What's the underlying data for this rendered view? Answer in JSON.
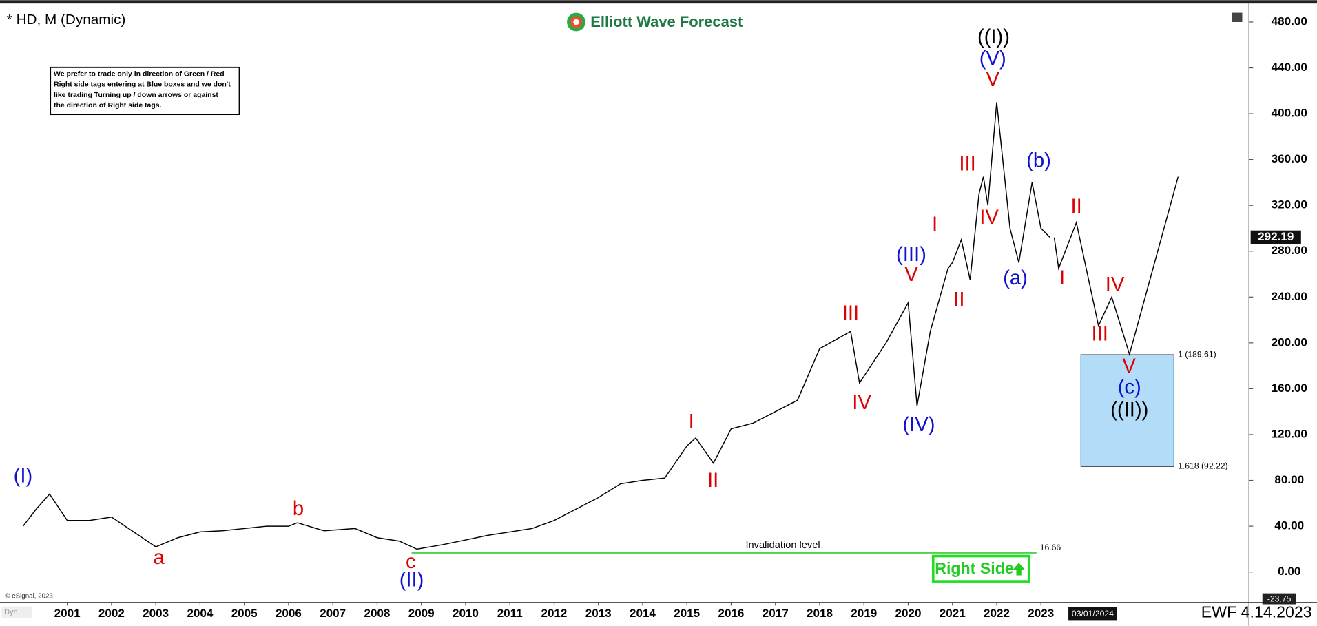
{
  "chart_data": {
    "type": "line",
    "title": "* HD, M (Dynamic)",
    "brand": "Elliott Wave Forecast",
    "disclaimer": [
      "We prefer to trade only in direction of Green / Red",
      "Right side tags entering at Blue boxes and we don't",
      "like trading Turning up / down arrows or against",
      "the direction of Right side tags."
    ],
    "copyright": "© eSignal, 2023",
    "corner_label": "Dyn",
    "footer": "EWF 4.14.2023",
    "date_box": "03/01/2024",
    "right_side_tag": "Right Side",
    "last_price": 292.19,
    "axis_min_marker": -23.75,
    "xlim": [
      1999.48,
      2027.7
    ],
    "xticks": [
      2001,
      2002,
      2003,
      2004,
      2005,
      2006,
      2007,
      2008,
      2009,
      2010,
      2011,
      2012,
      2013,
      2014,
      2015,
      2016,
      2017,
      2018,
      2019,
      2020,
      2021,
      2022,
      2023
    ],
    "ylim": [
      -26.4,
      491.7
    ],
    "yticks": [
      {
        "value": 0,
        "label": "0.00"
      },
      {
        "value": 40,
        "label": "40.00"
      },
      {
        "value": 80,
        "label": "80.00"
      },
      {
        "value": 120,
        "label": "120.00"
      },
      {
        "value": 160,
        "label": "160.00"
      },
      {
        "value": 200,
        "label": "200.00"
      },
      {
        "value": 240,
        "label": "240.00"
      },
      {
        "value": 280,
        "label": "280.00"
      },
      {
        "value": 320,
        "label": "320.00"
      },
      {
        "value": 360,
        "label": "360.00"
      },
      {
        "value": 400,
        "label": "400.00"
      },
      {
        "value": 440,
        "label": "440.00"
      },
      {
        "value": 480,
        "label": "480.00"
      }
    ],
    "series": [
      {
        "name": "HD",
        "color": "#000000",
        "x": [
          2000.0,
          2000.3,
          2000.6,
          2001.0,
          2001.5,
          2002.0,
          2002.5,
          2003.0,
          2003.5,
          2004.0,
          2004.5,
          2005.0,
          2005.5,
          2006.0,
          2006.2,
          2006.8,
          2007.5,
          2008.0,
          2008.5,
          2008.9,
          2009.5,
          2010.0,
          2010.5,
          2011.0,
          2011.5,
          2012.0,
          2012.5,
          2013.0,
          2013.5,
          2014.0,
          2014.5,
          2015.0,
          2015.2,
          2015.6,
          2016.0,
          2016.5,
          2017.0,
          2017.5,
          2018.0,
          2018.7,
          2018.9,
          2019.5,
          2020.0,
          2020.2,
          2020.5,
          2020.9,
          2021.0,
          2021.2,
          2021.4,
          2021.6,
          2021.7,
          2021.8,
          2022.0,
          2022.3,
          2022.5,
          2022.8,
          2023.0,
          2023.2
        ],
        "values": [
          40,
          55,
          68,
          45,
          45,
          48,
          35,
          22,
          30,
          35,
          36,
          38,
          40,
          40,
          43,
          36,
          38,
          30,
          27,
          20,
          24,
          28,
          32,
          35,
          38,
          45,
          55,
          65,
          77,
          80,
          82,
          110,
          117,
          95,
          125,
          130,
          140,
          150,
          195,
          210,
          165,
          200,
          235,
          145,
          210,
          265,
          270,
          290,
          255,
          330,
          345,
          320,
          410,
          300,
          270,
          340,
          300,
          292.19
        ]
      },
      {
        "name": "Projection",
        "color": "#000000",
        "x": [
          2023.3,
          2023.4,
          2023.8,
          2024.3,
          2024.6,
          2025.0,
          2026.1
        ],
        "values": [
          292,
          265,
          305,
          215,
          240,
          190,
          345
        ]
      }
    ],
    "target_box": {
      "color": "#b3dcf8",
      "x": [
        2023.9,
        2026.0
      ],
      "levels": [
        {
          "value": 189.61,
          "label": "1 (189.61)"
        },
        {
          "value": 92.22,
          "label": "1.618 (92.22)"
        }
      ]
    },
    "invalidation": {
      "label": "Invalidation level",
      "value": 16.66,
      "x": [
        2008.78,
        2022.9
      ],
      "color": "#33cc33"
    },
    "annotations": [
      {
        "text": "(I)",
        "x": 2000.0,
        "y": 83,
        "color": "#1010d0"
      },
      {
        "text": "a",
        "x": 2003.07,
        "y": 11.7,
        "color": "#dd0000"
      },
      {
        "text": "b",
        "x": 2006.22,
        "y": 54.2,
        "color": "#dd0000"
      },
      {
        "text": "c",
        "x": 2008.76,
        "y": 8,
        "color": "#dd0000"
      },
      {
        "text": "(II)",
        "x": 2008.78,
        "y": -8,
        "color": "#1010d0"
      },
      {
        "text": "I",
        "x": 2015.1,
        "y": 130.4,
        "color": "#dd0000"
      },
      {
        "text": "II",
        "x": 2015.59,
        "y": 79,
        "color": "#dd0000"
      },
      {
        "text": "III",
        "x": 2018.7,
        "y": 225,
        "color": "#dd0000"
      },
      {
        "text": "IV",
        "x": 2018.95,
        "y": 147,
        "color": "#dd0000"
      },
      {
        "text": "(IV)",
        "x": 2020.24,
        "y": 127.5,
        "color": "#1010d0"
      },
      {
        "text": "(III)",
        "x": 2020.07,
        "y": 276,
        "color": "#1010d0"
      },
      {
        "text": "V",
        "x": 2020.07,
        "y": 258.6,
        "color": "#dd0000"
      },
      {
        "text": "I",
        "x": 2020.6,
        "y": 302.6,
        "color": "#dd0000"
      },
      {
        "text": "II",
        "x": 2021.15,
        "y": 236.6,
        "color": "#dd0000"
      },
      {
        "text": "III",
        "x": 2021.34,
        "y": 355,
        "color": "#dd0000"
      },
      {
        "text": "IV",
        "x": 2021.83,
        "y": 308.5,
        "color": "#dd0000"
      },
      {
        "text": "V",
        "x": 2021.91,
        "y": 428.6,
        "color": "#dd0000"
      },
      {
        "text": "(V)",
        "x": 2021.91,
        "y": 447,
        "color": "#1010d0"
      },
      {
        "text": "((I))",
        "x": 2021.93,
        "y": 466,
        "color": "#000000"
      },
      {
        "text": "(b)",
        "x": 2022.95,
        "y": 358,
        "color": "#1010d0"
      },
      {
        "text": "(a)",
        "x": 2022.42,
        "y": 255.7,
        "color": "#1010d0"
      },
      {
        "text": "I",
        "x": 2023.48,
        "y": 255.7,
        "color": "#dd0000"
      },
      {
        "text": "II",
        "x": 2023.8,
        "y": 318,
        "color": "#dd0000"
      },
      {
        "text": "III",
        "x": 2024.33,
        "y": 206.6,
        "color": "#dd0000"
      },
      {
        "text": "IV",
        "x": 2024.67,
        "y": 249.8,
        "color": "#dd0000"
      },
      {
        "text": "V",
        "x": 2024.99,
        "y": 178.8,
        "color": "#dd0000"
      },
      {
        "text": "(c)",
        "x": 2025.0,
        "y": 160.4,
        "color": "#1010d0"
      },
      {
        "text": "((II))",
        "x": 2025.0,
        "y": 140.7,
        "color": "#000000"
      }
    ]
  }
}
